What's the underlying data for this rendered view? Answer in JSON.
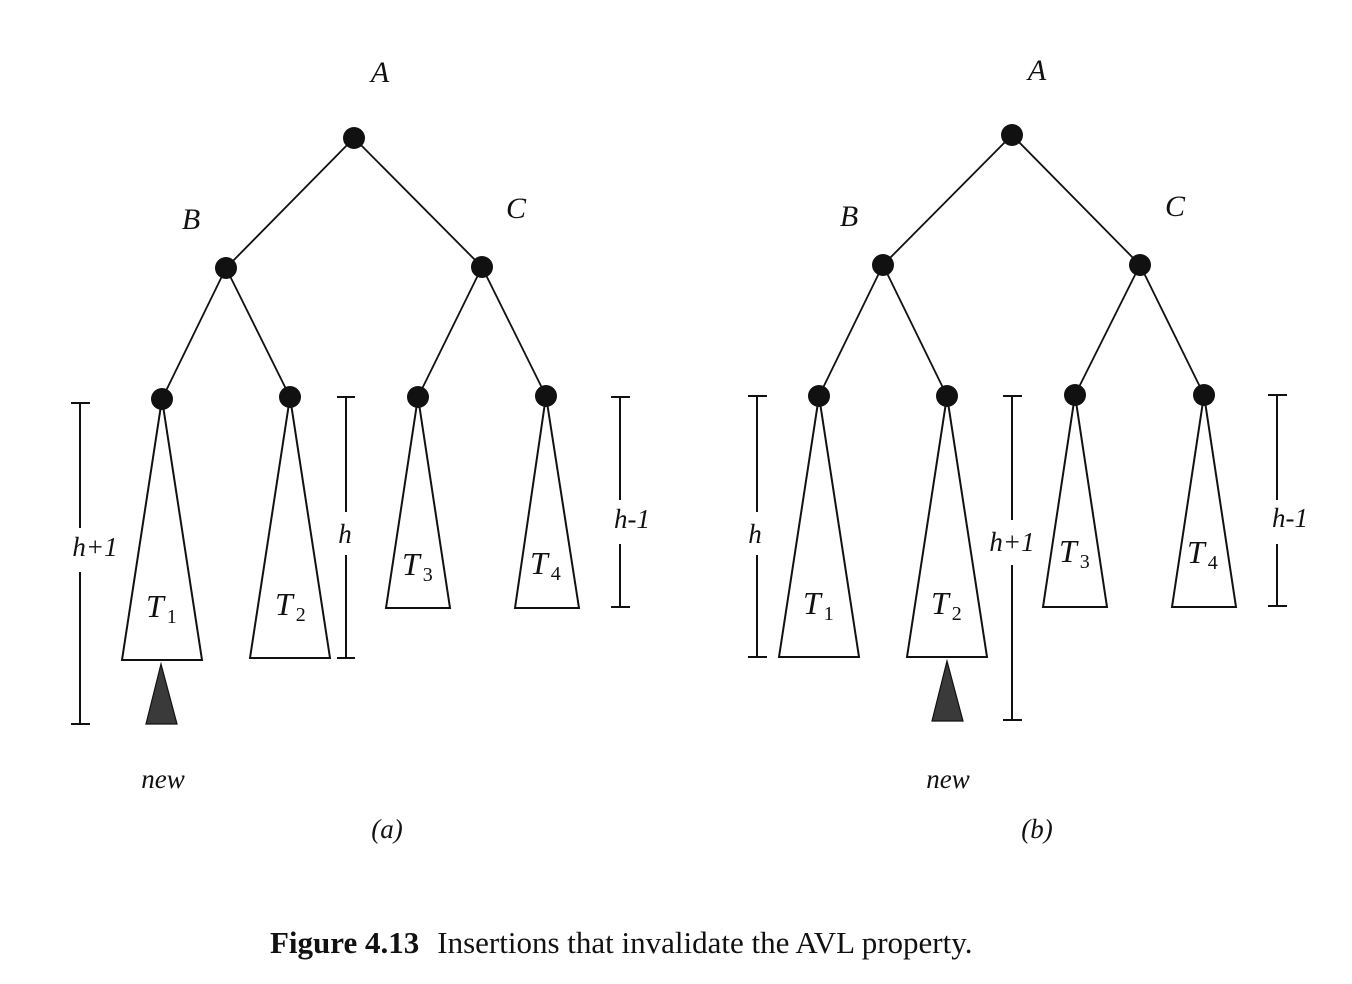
{
  "colors": {
    "ink": "#111111",
    "background": "#ffffff",
    "new_subtree_fill": "#3a3a3a"
  },
  "panels": [
    {
      "id": "a",
      "label": "(a)",
      "nodes": {
        "root": "A",
        "left": "B",
        "right": "C"
      },
      "subtrees": [
        {
          "name": "T",
          "sub": "1"
        },
        {
          "name": "T",
          "sub": "2"
        },
        {
          "name": "T",
          "sub": "3"
        },
        {
          "name": "T",
          "sub": "4"
        }
      ],
      "heights": {
        "left": "h+1",
        "middle": "h",
        "right": "h-1"
      },
      "new_label": "new"
    },
    {
      "id": "b",
      "label": "(b)",
      "nodes": {
        "root": "A",
        "left": "B",
        "right": "C"
      },
      "subtrees": [
        {
          "name": "T",
          "sub": "1"
        },
        {
          "name": "T",
          "sub": "2"
        },
        {
          "name": "T",
          "sub": "3"
        },
        {
          "name": "T",
          "sub": "4"
        }
      ],
      "heights": {
        "left": "h",
        "middle": "h+1",
        "right": "h-1"
      },
      "new_label": "new"
    }
  ],
  "caption": {
    "number": "Figure 4.13",
    "text": "Insertions that invalidate the AVL property."
  }
}
